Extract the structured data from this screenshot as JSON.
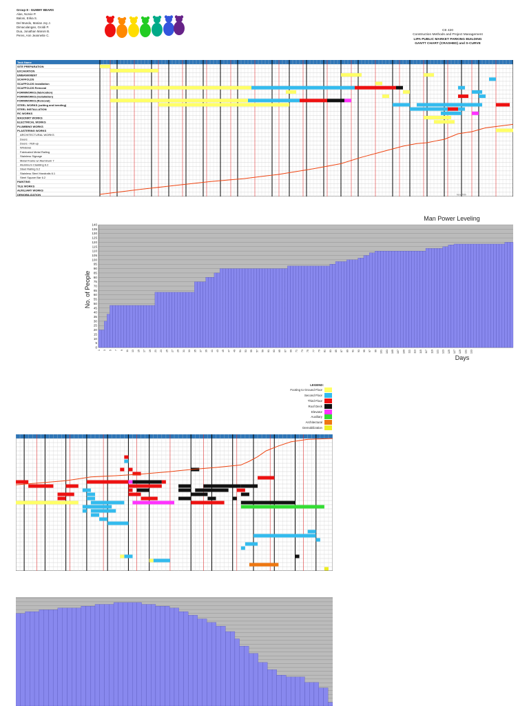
{
  "header": {
    "group": "Group 8 - GUMMY BEARS",
    "members": [
      "Alas, Norvie P.",
      "Baloni, Erika S.",
      "Del Mundo, Marian Joy J.",
      "Dimaculangan, Groldi P.",
      "Dua, Jonathan Marvin B.",
      "Peres, Ann Jeannette C."
    ]
  },
  "course": {
    "code": "CE 420",
    "name": "Construction Methods and Project Management",
    "project": "LIPA PUBLIC MARKET PARKING BUILDING",
    "chart_title": "GANTT CHART (CRASHED) and S-CURVE"
  },
  "gantt": {
    "tasks": [
      "Task Name",
      "SITE PREPARATION",
      "EXCAVATION",
      "EMBANKMENT",
      "SCAFFOLDS",
      "SCAFFOLDS Installation",
      "SCAFFOLDS Removal",
      "FORMWORKS (fabrication)",
      "FORMWORKS (installation)",
      "FORMWORKS (Removal)",
      "STEEL WORKS (cutting and bending)",
      "STEEL INSTALLATION",
      "RC WORKS",
      "MASONRY WORKS",
      "ELECTRICAL WORKS",
      "PLUMBING WORKS",
      "PLASTERING WORKS",
      "ARCHITECTURAL WORKS",
      "Doors",
      "Doors - Roll-up",
      "Windows",
      "Fabricated Metal Railing",
      "Stainless Signage",
      "Metal Frame w/ Aluminum 7",
      "Aluminum Cladding 6.2",
      "Steel Railing 6.2",
      "Stainless Steel Handrails 6.1",
      "Steel Square Bar 6.2",
      "PAINTING",
      "TILE WORKS",
      "AUXILIARY WORKS",
      "DEMOBILIZATION"
    ],
    "footnote": "Nov 70th"
  },
  "colors": {
    "footing": "#ffff66",
    "second": "#33bbee",
    "third": "#ee1111",
    "roof": "#111111",
    "elevator": "#ff33ff",
    "auxiliary": "#33dd33",
    "architectural": "#ee7711",
    "demob": "#eeee22",
    "header": "#2e75b6",
    "scurve": "#ee4411",
    "bars": "#8888ee",
    "plot_bg": "#bbbbbb"
  },
  "legend": {
    "title": "LEGEND:",
    "items": [
      {
        "label": "Footing to Ground Floor",
        "color": "#ffff66"
      },
      {
        "label": "Second Floor",
        "color": "#33bbee"
      },
      {
        "label": "Third Floor",
        "color": "#ee1111"
      },
      {
        "label": "Roof Deck",
        "color": "#111111"
      },
      {
        "label": "Elevator",
        "color": "#ff33ff"
      },
      {
        "label": "Auxiliary",
        "color": "#33dd33"
      },
      {
        "label": "Architectural",
        "color": "#ee7711"
      },
      {
        "label": "Demobilization",
        "color": "#eeee22"
      }
    ]
  },
  "chart_data": [
    {
      "type": "bar",
      "title": "Man Power Leveling",
      "xlabel": "Days",
      "ylabel": "No. of People",
      "ylim": [
        0,
        140
      ],
      "yticks": [
        0,
        5,
        10,
        15,
        20,
        25,
        30,
        35,
        40,
        45,
        50,
        55,
        60,
        65,
        70,
        75,
        80,
        85,
        90,
        95,
        100,
        105,
        110,
        115,
        120,
        125,
        130,
        135,
        140
      ],
      "xtick_labels": [
        "1",
        "3",
        "5",
        "7",
        "9",
        "11",
        "13",
        "15",
        "17",
        "19",
        "21",
        "23",
        "25",
        "27",
        "29",
        "31",
        "33",
        "35",
        "37",
        "39",
        "41",
        "43",
        "45",
        "47",
        "49",
        "51",
        "53",
        "55",
        "57",
        "59",
        "61",
        "63",
        "65",
        "67",
        "69",
        "71",
        "73",
        "75",
        "77",
        "79",
        "81",
        "83",
        "85",
        "87",
        "89",
        "91",
        "93",
        "95",
        "97",
        "99",
        "101",
        "103",
        "105",
        "107",
        "109",
        "111",
        "113",
        "115",
        "117",
        "119",
        "121",
        "123",
        "125",
        "127",
        "129",
        "131",
        "133"
      ],
      "segments": [
        {
          "days": 2,
          "value": 20
        },
        {
          "days": 1,
          "value": 30
        },
        {
          "days": 1,
          "value": 38
        },
        {
          "days": 16,
          "value": 48
        },
        {
          "days": 14,
          "value": 63
        },
        {
          "days": 4,
          "value": 75
        },
        {
          "days": 3,
          "value": 80
        },
        {
          "days": 2,
          "value": 85
        },
        {
          "days": 24,
          "value": 90
        },
        {
          "days": 15,
          "value": 93
        },
        {
          "days": 2,
          "value": 95
        },
        {
          "days": 4,
          "value": 98
        },
        {
          "days": 4,
          "value": 100
        },
        {
          "days": 2,
          "value": 102
        },
        {
          "days": 2,
          "value": 105
        },
        {
          "days": 2,
          "value": 108
        },
        {
          "days": 18,
          "value": 110
        },
        {
          "days": 6,
          "value": 113
        },
        {
          "days": 2,
          "value": 115
        },
        {
          "days": 2,
          "value": 117
        },
        {
          "days": 18,
          "value": 118
        },
        {
          "days": 3,
          "value": 120
        }
      ]
    },
    {
      "type": "bar",
      "title": "",
      "xlabel": "",
      "ylabel": "",
      "ylim": [
        0,
        140
      ],
      "segments": [
        {
          "days": 2,
          "value": 102
        },
        {
          "days": 3,
          "value": 104
        },
        {
          "days": 4,
          "value": 106
        },
        {
          "days": 5,
          "value": 108
        },
        {
          "days": 3,
          "value": 110
        },
        {
          "days": 4,
          "value": 112
        },
        {
          "days": 6,
          "value": 114
        },
        {
          "days": 3,
          "value": 112
        },
        {
          "days": 3,
          "value": 110
        },
        {
          "days": 2,
          "value": 108
        },
        {
          "days": 2,
          "value": 104
        },
        {
          "days": 2,
          "value": 100
        },
        {
          "days": 2,
          "value": 96
        },
        {
          "days": 2,
          "value": 92
        },
        {
          "days": 2,
          "value": 88
        },
        {
          "days": 2,
          "value": 82
        },
        {
          "days": 1,
          "value": 74
        },
        {
          "days": 2,
          "value": 66
        },
        {
          "days": 2,
          "value": 58
        },
        {
          "days": 2,
          "value": 48
        },
        {
          "days": 2,
          "value": 40
        },
        {
          "days": 2,
          "value": 34
        },
        {
          "days": 4,
          "value": 32
        },
        {
          "days": 3,
          "value": 26
        },
        {
          "days": 2,
          "value": 20
        },
        {
          "days": 1,
          "value": 4
        }
      ]
    }
  ]
}
